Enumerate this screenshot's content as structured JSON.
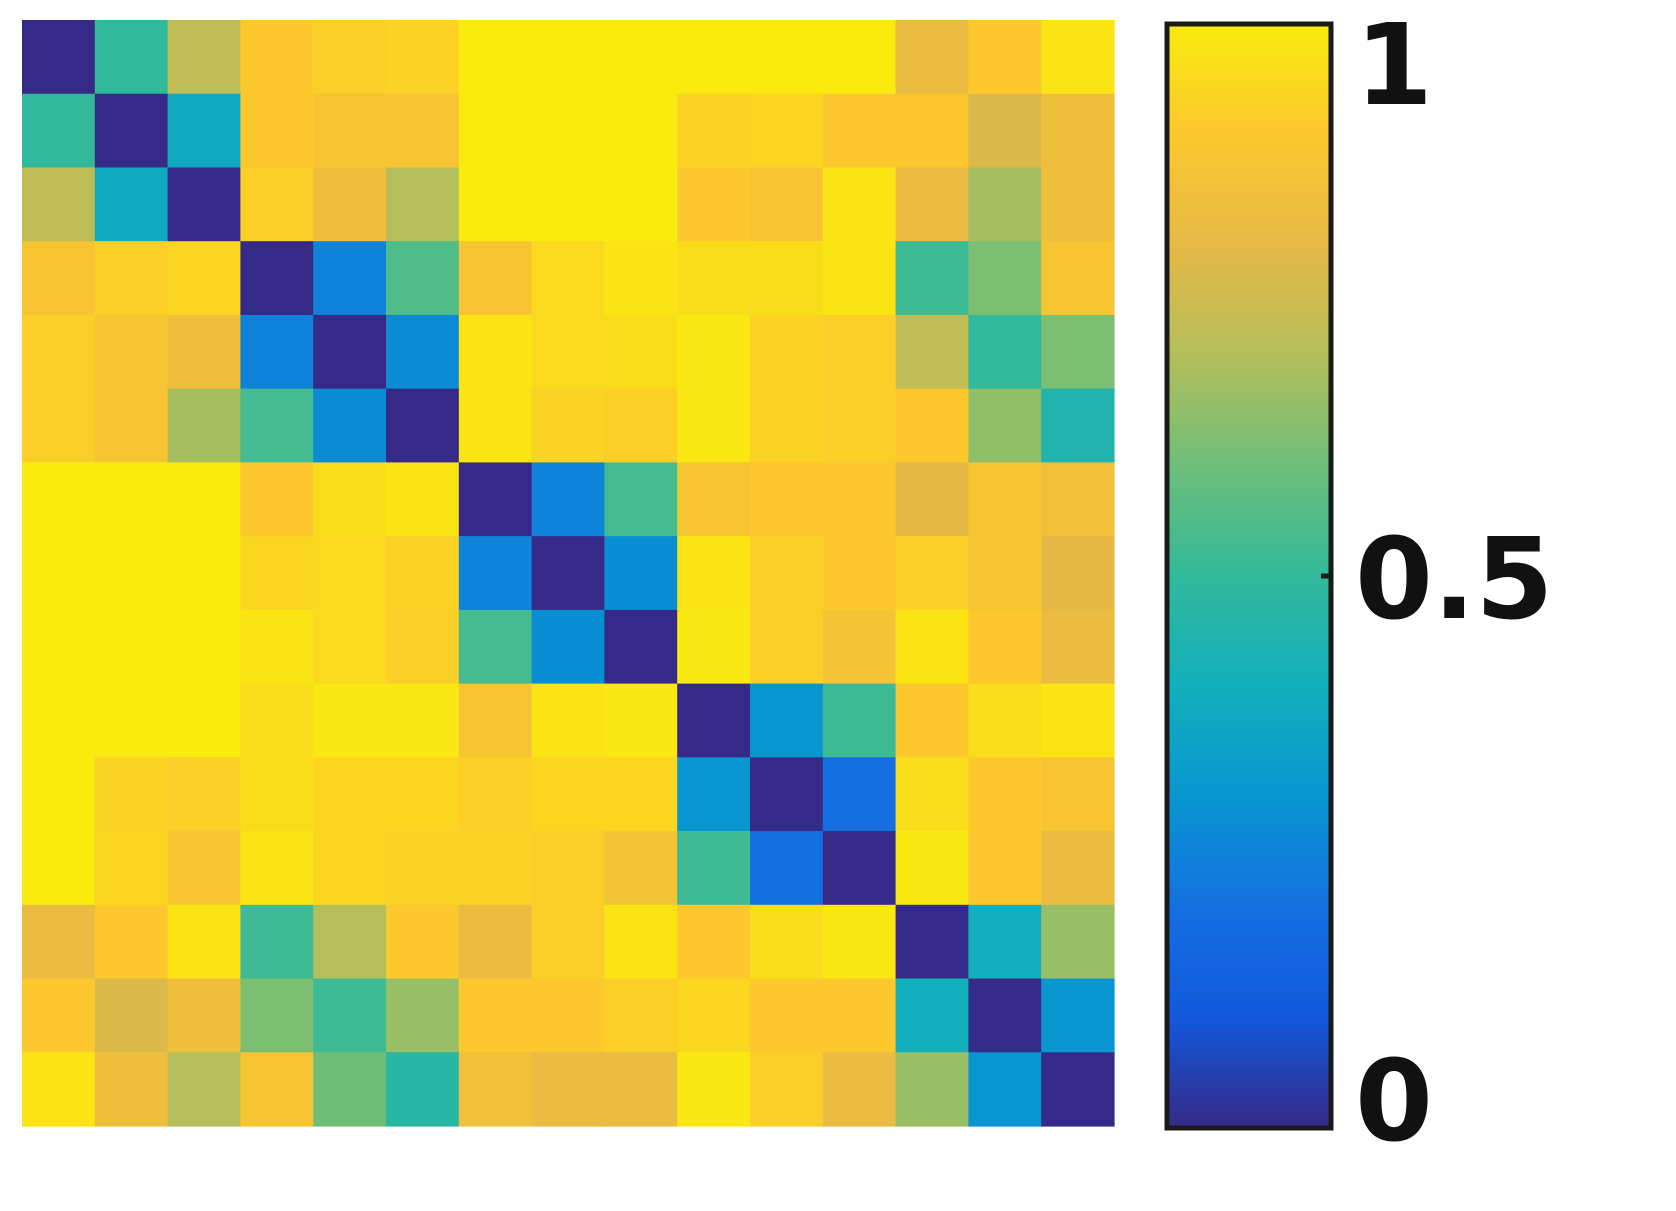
{
  "chart_data": {
    "type": "heatmap",
    "rows": 15,
    "cols": 15,
    "colormap": "parula",
    "value_range": [
      0,
      1
    ],
    "colorbar": {
      "ticks": [
        {
          "value": 1,
          "label": "1"
        },
        {
          "value": 0.5,
          "label": "0.5"
        },
        {
          "value": 0,
          "label": "0"
        }
      ]
    },
    "values": [
      [
        0.0,
        0.5,
        0.72,
        0.9,
        0.92,
        0.93,
        1.0,
        1.0,
        1.0,
        1.0,
        1.0,
        1.0,
        0.82,
        0.9,
        0.98
      ],
      [
        0.5,
        0.0,
        0.38,
        0.9,
        0.88,
        0.88,
        1.0,
        1.0,
        1.0,
        0.93,
        0.94,
        0.9,
        0.9,
        0.78,
        0.84
      ],
      [
        0.72,
        0.38,
        0.0,
        0.92,
        0.84,
        0.7,
        1.0,
        1.0,
        1.0,
        0.9,
        0.88,
        0.98,
        0.82,
        0.68,
        0.84
      ],
      [
        0.88,
        0.92,
        0.94,
        0.0,
        0.25,
        0.55,
        0.88,
        0.95,
        0.98,
        0.96,
        0.96,
        0.98,
        0.52,
        0.62,
        0.88
      ],
      [
        0.92,
        0.88,
        0.84,
        0.25,
        0.0,
        0.27,
        0.98,
        0.95,
        0.96,
        0.99,
        0.93,
        0.92,
        0.72,
        0.5,
        0.62
      ],
      [
        0.92,
        0.88,
        0.68,
        0.53,
        0.27,
        0.0,
        0.98,
        0.93,
        0.92,
        0.99,
        0.93,
        0.92,
        0.9,
        0.65,
        0.45
      ],
      [
        1.0,
        1.0,
        1.0,
        0.9,
        0.96,
        0.98,
        0.0,
        0.25,
        0.53,
        0.88,
        0.9,
        0.9,
        0.8,
        0.88,
        0.85
      ],
      [
        1.0,
        1.0,
        1.0,
        0.94,
        0.95,
        0.93,
        0.25,
        0.0,
        0.28,
        0.98,
        0.92,
        0.9,
        0.92,
        0.88,
        0.8
      ],
      [
        1.0,
        1.0,
        1.0,
        0.98,
        0.95,
        0.92,
        0.53,
        0.28,
        0.0,
        0.99,
        0.92,
        0.87,
        0.98,
        0.9,
        0.82
      ],
      [
        1.0,
        1.0,
        1.0,
        0.96,
        0.99,
        0.99,
        0.88,
        0.98,
        0.99,
        0.0,
        0.3,
        0.52,
        0.9,
        0.96,
        0.98
      ],
      [
        1.0,
        0.93,
        0.92,
        0.96,
        0.94,
        0.94,
        0.92,
        0.94,
        0.94,
        0.3,
        0.0,
        0.2,
        0.96,
        0.9,
        0.88
      ],
      [
        1.0,
        0.94,
        0.88,
        0.98,
        0.94,
        0.93,
        0.93,
        0.92,
        0.87,
        0.52,
        0.2,
        0.0,
        0.99,
        0.9,
        0.82
      ],
      [
        0.82,
        0.9,
        0.98,
        0.52,
        0.7,
        0.9,
        0.82,
        0.92,
        0.98,
        0.9,
        0.96,
        0.99,
        0.0,
        0.4,
        0.66
      ],
      [
        0.9,
        0.78,
        0.84,
        0.62,
        0.52,
        0.66,
        0.9,
        0.9,
        0.92,
        0.94,
        0.9,
        0.9,
        0.4,
        0.0,
        0.3
      ],
      [
        0.98,
        0.84,
        0.7,
        0.88,
        0.6,
        0.47,
        0.85,
        0.82,
        0.82,
        0.99,
        0.92,
        0.82,
        0.66,
        0.3,
        0.0
      ]
    ]
  }
}
